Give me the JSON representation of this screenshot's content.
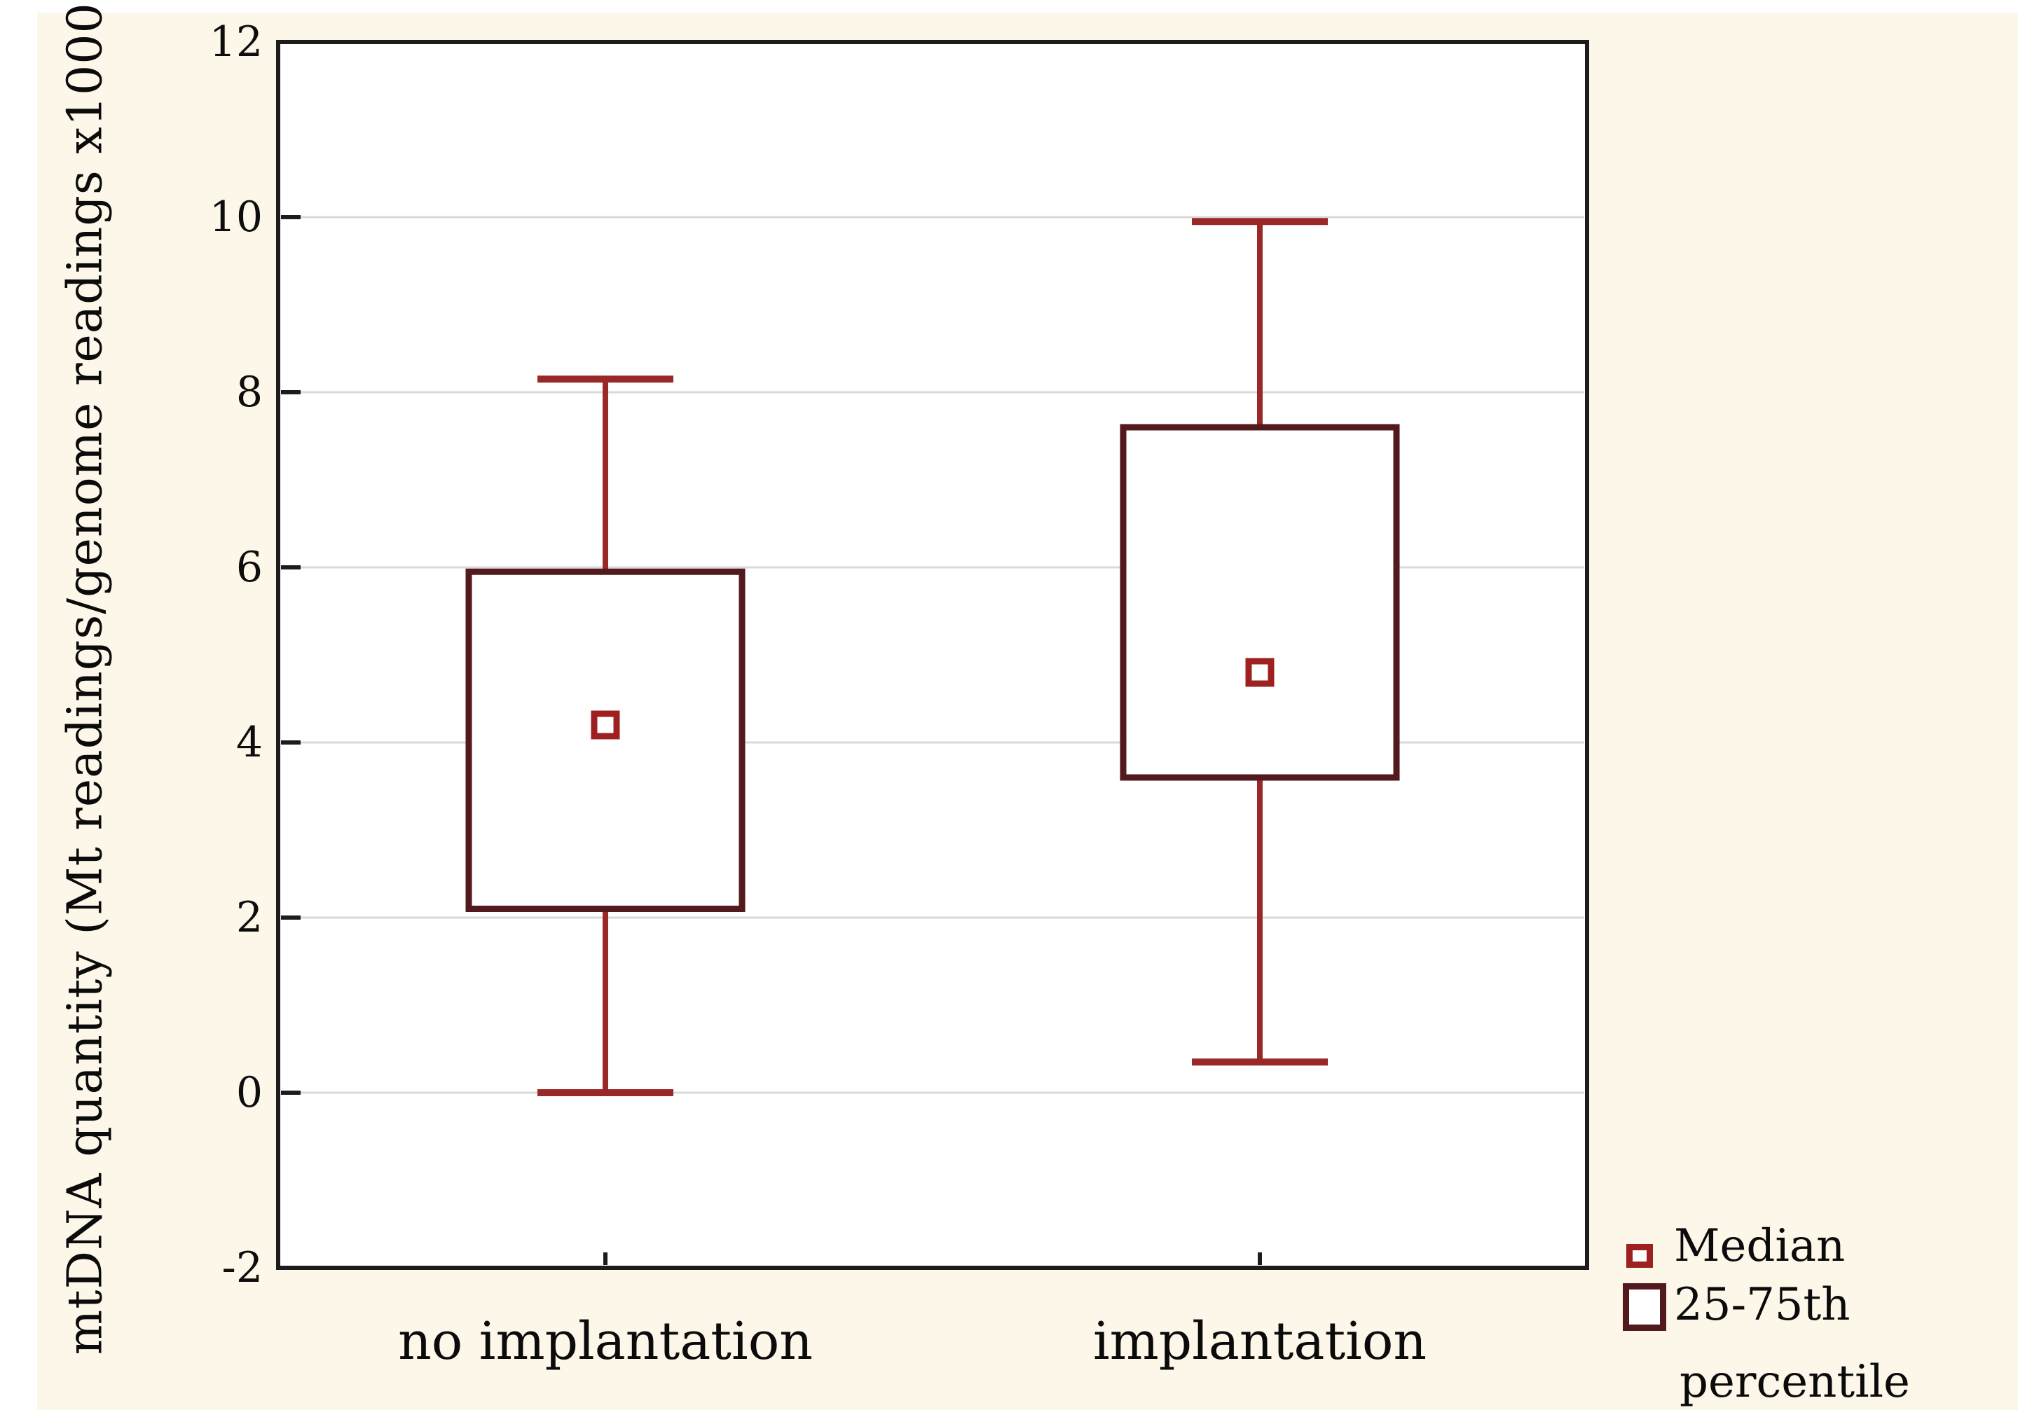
{
  "figure": {
    "description": "Box-and-whisker plot comparing mtDNA quantity between embryos with no implantation and with implantation"
  },
  "colors": {
    "page_background": "#ffffff",
    "canvas_background": "#fdf7e9",
    "plot_background": "#ffffff",
    "plot_border": "#1c1c1c",
    "gridline": "#d9d9d9",
    "tick_mark": "#1c1c1c",
    "whisker": "#9b2828",
    "box_border": "#521a1d",
    "median_marker": "#9e2020",
    "text": "#0b0b0b"
  },
  "chart_data": {
    "type": "box",
    "title": "",
    "xlabel": "",
    "ylabel": "mtDNA quantity (Mt readings/genome readings x1000)",
    "categories": [
      "no implantation",
      "implantation"
    ],
    "ylim": [
      -2,
      12
    ],
    "yticks": [
      12,
      10,
      8,
      6,
      4,
      2,
      0,
      -2
    ],
    "grid": "horizontal-light-gray",
    "legend_position": "bottom-right-outside",
    "series": [
      {
        "name": "mtDNA quantity",
        "boxes": [
          {
            "category": "no implantation",
            "whisker_low": 0.0,
            "q1": 2.1,
            "median": 4.2,
            "q3": 5.95,
            "whisker_high": 8.15
          },
          {
            "category": "implantation",
            "whisker_low": 0.35,
            "q1": 3.6,
            "median": 4.8,
            "q3": 7.6,
            "whisker_high": 9.95
          }
        ]
      }
    ]
  },
  "legend": {
    "median_label": "Median",
    "range_label_line1": "25-75th",
    "range_label_line2": "percentile"
  }
}
